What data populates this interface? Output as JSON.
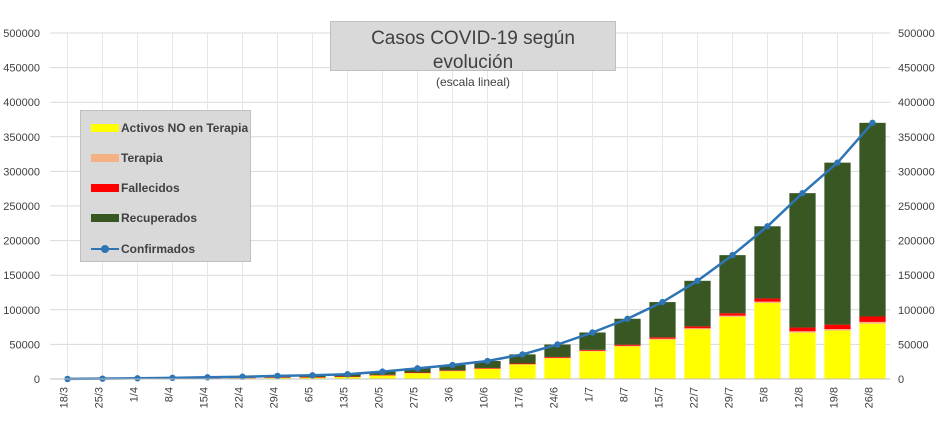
{
  "chart_data": {
    "type": "bar",
    "title": "Casos COVID-19 según evolución",
    "subtitle": "(escala lineal)",
    "xlabel": "",
    "ylabel": "",
    "ylim": [
      0,
      500000
    ],
    "y_ticks": [
      0,
      50000,
      100000,
      150000,
      200000,
      250000,
      300000,
      350000,
      400000,
      450000,
      500000
    ],
    "y_tick_labels": [
      "0",
      "50000",
      "100000",
      "150000",
      "200000",
      "250000",
      "300000",
      "350000",
      "400000",
      "450000",
      "500000"
    ],
    "grid": true,
    "legend_position": "left",
    "series_colors": {
      "activos": "#ffff00",
      "terapia": "#f4b183",
      "fallecidos": "#ff0000",
      "recuperados": "#385723",
      "confirmados": "#2e75b6"
    },
    "categories": [
      "18/3",
      "25/3",
      "1/4",
      "8/4",
      "15/4",
      "22/4",
      "29/4",
      "6/5",
      "13/5",
      "20/5",
      "27/5",
      "3/6",
      "10/6",
      "17/6",
      "24/6",
      "1/7",
      "8/7",
      "15/7",
      "22/7",
      "29/7",
      "5/8",
      "12/8",
      "19/8",
      "26/8"
    ],
    "legend": [
      {
        "key": "activos",
        "label": "Activos NO en Terapia"
      },
      {
        "key": "terapia",
        "label": "Terapia"
      },
      {
        "key": "fallecidos",
        "label": "Fallecidos"
      },
      {
        "key": "recuperados",
        "label": "Recuperados"
      },
      {
        "key": "confirmados",
        "label": "Confirmados"
      }
    ],
    "series": [
      {
        "name": "Confirmados",
        "type": "line",
        "values": [
          97,
          502,
          1054,
          1715,
          2443,
          3288,
          4428,
          5371,
          6879,
          10649,
          15419,
          20197,
          25987,
          35552,
          49851,
          67197,
          87030,
          111160,
          141900,
          178996,
          220682,
          268574,
          312659,
          370188
        ]
      },
      {
        "name": "Activos NO en Terapia",
        "type": "bar",
        "values": [
          90,
          420,
          810,
          1140,
          1400,
          1700,
          2100,
          2400,
          3200,
          5400,
          8600,
          11500,
          14800,
          21000,
          30000,
          40000,
          47000,
          57000,
          72000,
          90000,
          110000,
          67000,
          70000,
          80000
        ]
      },
      {
        "name": "Terapia",
        "type": "bar",
        "values": [
          5,
          40,
          70,
          100,
          120,
          130,
          130,
          130,
          150,
          200,
          280,
          330,
          380,
          470,
          600,
          800,
          1000,
          1200,
          1400,
          1600,
          1800,
          2000,
          2200,
          2500
        ]
      },
      {
        "name": "Fallecidos",
        "type": "bar",
        "values": [
          2,
          12,
          30,
          70,
          110,
          170,
          240,
          290,
          340,
          420,
          530,
          650,
          750,
          930,
          1250,
          1330,
          1660,
          2050,
          2640,
          3540,
          4450,
          5340,
          6380,
          7830
        ]
      },
      {
        "name": "Recuperados",
        "type": "bar",
        "values": [
          0,
          30,
          140,
          400,
          810,
          1290,
          1960,
          2550,
          3190,
          4630,
          6010,
          7720,
          10060,
          13150,
          18000,
          25070,
          37370,
          50910,
          65860,
          83860,
          104430,
          194230,
          234080,
          279860
        ]
      }
    ]
  }
}
